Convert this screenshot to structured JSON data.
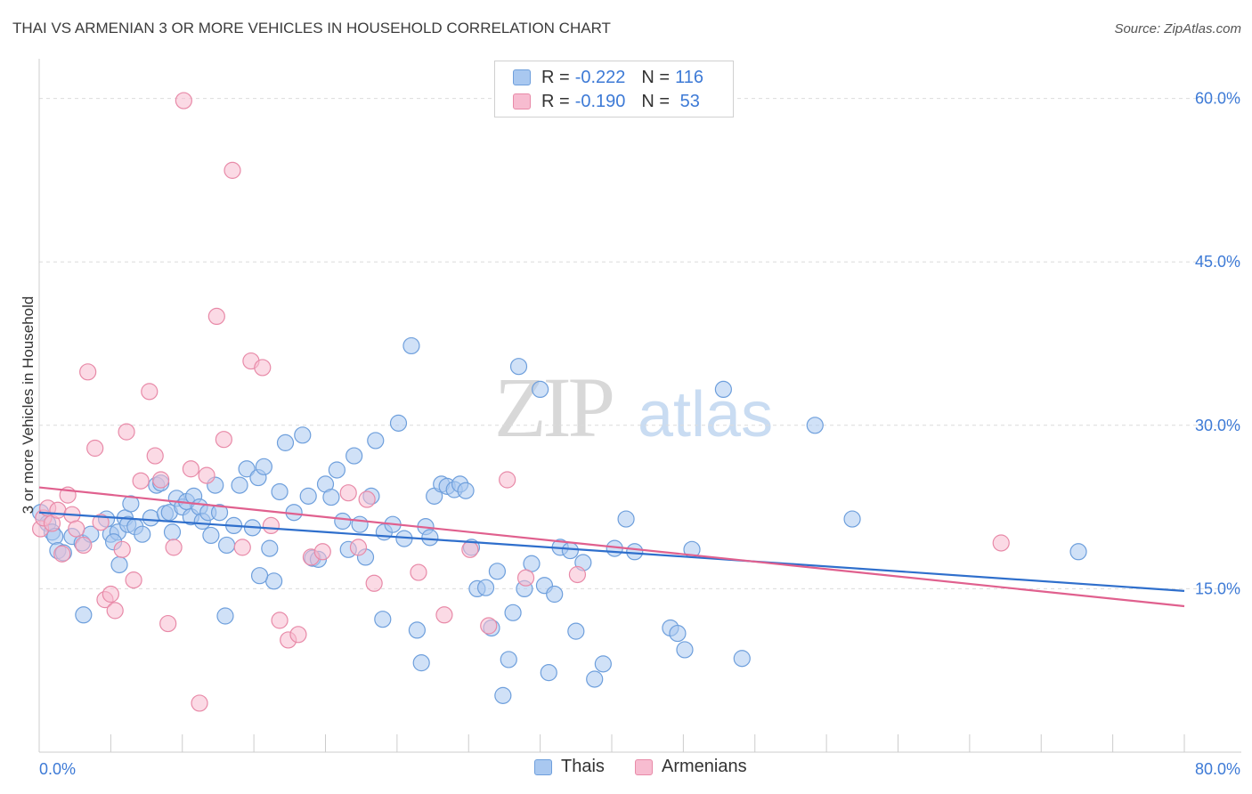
{
  "header": {
    "title": "THAI VS ARMENIAN 3 OR MORE VEHICLES IN HOUSEHOLD CORRELATION CHART",
    "source": "Source: ZipAtlas.com"
  },
  "watermark": {
    "zip": "ZIP",
    "atlas": "atlas"
  },
  "legend": {
    "rows": [
      {
        "r_label": "R = ",
        "r_value": "-0.222",
        "n_label": "N = ",
        "n_value": "116"
      },
      {
        "r_label": "R = ",
        "r_value": "-0.190",
        "n_label": "N = ",
        "n_value": " 53"
      }
    ]
  },
  "bottom_legend": {
    "thais": "Thais",
    "armenians": "Armenians"
  },
  "colors": {
    "thais_fill": "#a9c8f0",
    "thais_stroke": "#6e9fdc",
    "thais_line": "#2f6fcc",
    "armenians_fill": "#f7bcd0",
    "armenians_stroke": "#e88aa8",
    "armenians_line": "#e0608e",
    "axis_text": "#3d7ad6",
    "grid": "#dcdcdc"
  },
  "chart_data": {
    "type": "scatter",
    "title": "THAI VS ARMENIAN 3 OR MORE VEHICLES IN HOUSEHOLD CORRELATION CHART",
    "ylabel": "3 or more Vehicles in Household",
    "xlabel": "",
    "x_tick_labels": [
      "0.0%",
      "80.0%"
    ],
    "y_tick_labels": [
      "15.0%",
      "30.0%",
      "45.0%",
      "60.0%"
    ],
    "y_ticks": [
      15,
      30,
      45,
      60
    ],
    "xlim": [
      0,
      80
    ],
    "ylim": [
      0,
      62.5
    ],
    "grid": true,
    "legend_position": "top-center",
    "series": [
      {
        "name": "Thais",
        "r": -0.222,
        "n": 116,
        "trend": {
          "x": [
            0,
            80
          ],
          "y": [
            22.0,
            14.8
          ]
        },
        "points": [
          [
            0.1,
            22.0
          ],
          [
            0.6,
            21.0
          ],
          [
            0.9,
            20.2
          ],
          [
            1.1,
            19.8
          ],
          [
            1.3,
            18.5
          ],
          [
            1.7,
            18.3
          ],
          [
            2.3,
            19.8
          ],
          [
            3.0,
            19.2
          ],
          [
            3.6,
            20.0
          ],
          [
            4.7,
            21.4
          ],
          [
            5.0,
            20.0
          ],
          [
            5.5,
            20.2
          ],
          [
            5.2,
            19.3
          ],
          [
            5.6,
            17.2
          ],
          [
            6.0,
            21.5
          ],
          [
            6.2,
            20.9
          ],
          [
            6.4,
            22.8
          ],
          [
            6.7,
            20.7
          ],
          [
            7.2,
            20.0
          ],
          [
            7.8,
            21.5
          ],
          [
            8.2,
            24.5
          ],
          [
            8.5,
            24.7
          ],
          [
            8.8,
            21.9
          ],
          [
            9.1,
            22.0
          ],
          [
            9.3,
            20.2
          ],
          [
            9.6,
            23.3
          ],
          [
            10.0,
            22.5
          ],
          [
            10.3,
            23.0
          ],
          [
            10.6,
            21.6
          ],
          [
            10.8,
            23.5
          ],
          [
            11.2,
            22.5
          ],
          [
            11.4,
            21.2
          ],
          [
            11.8,
            22.0
          ],
          [
            12.0,
            19.9
          ],
          [
            12.3,
            24.5
          ],
          [
            12.6,
            22.0
          ],
          [
            13.1,
            19.0
          ],
          [
            13.6,
            20.8
          ],
          [
            14.0,
            24.5
          ],
          [
            14.5,
            26.0
          ],
          [
            14.9,
            20.6
          ],
          [
            15.3,
            25.2
          ],
          [
            15.7,
            26.2
          ],
          [
            16.1,
            18.7
          ],
          [
            16.4,
            15.7
          ],
          [
            16.8,
            23.9
          ],
          [
            17.2,
            28.4
          ],
          [
            17.8,
            22.0
          ],
          [
            18.4,
            29.1
          ],
          [
            18.8,
            23.5
          ],
          [
            19.1,
            17.8
          ],
          [
            19.5,
            17.7
          ],
          [
            20.0,
            24.6
          ],
          [
            20.4,
            23.4
          ],
          [
            20.8,
            25.9
          ],
          [
            21.2,
            21.2
          ],
          [
            21.6,
            18.6
          ],
          [
            22.0,
            27.2
          ],
          [
            22.4,
            20.9
          ],
          [
            22.8,
            17.9
          ],
          [
            23.2,
            23.5
          ],
          [
            23.5,
            28.6
          ],
          [
            24.1,
            20.2
          ],
          [
            24.7,
            20.9
          ],
          [
            25.1,
            30.2
          ],
          [
            25.5,
            19.6
          ],
          [
            26.0,
            37.3
          ],
          [
            26.4,
            11.2
          ],
          [
            26.7,
            8.2
          ],
          [
            27.0,
            20.7
          ],
          [
            27.3,
            19.7
          ],
          [
            27.6,
            23.5
          ],
          [
            28.1,
            24.6
          ],
          [
            28.5,
            24.4
          ],
          [
            29.0,
            24.1
          ],
          [
            29.4,
            24.6
          ],
          [
            29.8,
            24.0
          ],
          [
            30.2,
            18.8
          ],
          [
            30.6,
            15.0
          ],
          [
            31.2,
            15.1
          ],
          [
            31.6,
            11.4
          ],
          [
            32.0,
            16.6
          ],
          [
            32.4,
            5.2
          ],
          [
            32.8,
            8.5
          ],
          [
            33.1,
            12.8
          ],
          [
            33.5,
            35.4
          ],
          [
            33.9,
            15.0
          ],
          [
            34.4,
            17.3
          ],
          [
            35.0,
            33.3
          ],
          [
            35.3,
            15.3
          ],
          [
            35.6,
            7.3
          ],
          [
            36.0,
            14.5
          ],
          [
            36.4,
            18.8
          ],
          [
            37.1,
            18.5
          ],
          [
            37.5,
            11.1
          ],
          [
            38.0,
            17.4
          ],
          [
            38.8,
            6.7
          ],
          [
            39.4,
            8.1
          ],
          [
            40.2,
            18.7
          ],
          [
            41.0,
            21.4
          ],
          [
            41.6,
            18.4
          ],
          [
            44.1,
            11.4
          ],
          [
            44.6,
            10.9
          ],
          [
            45.1,
            9.4
          ],
          [
            45.6,
            18.6
          ],
          [
            47.8,
            33.3
          ],
          [
            49.1,
            8.6
          ],
          [
            54.2,
            30.0
          ],
          [
            56.8,
            21.4
          ],
          [
            72.6,
            18.4
          ],
          [
            13.0,
            12.5
          ],
          [
            3.1,
            12.6
          ],
          [
            15.4,
            16.2
          ],
          [
            24.0,
            12.2
          ]
        ]
      },
      {
        "name": "Armenians",
        "r": -0.19,
        "n": 53,
        "trend": {
          "x": [
            0,
            80
          ],
          "y": [
            24.3,
            13.4
          ]
        },
        "points": [
          [
            0.1,
            20.5
          ],
          [
            0.3,
            21.5
          ],
          [
            0.6,
            22.4
          ],
          [
            0.9,
            21.0
          ],
          [
            1.3,
            22.2
          ],
          [
            1.6,
            18.2
          ],
          [
            2.0,
            23.6
          ],
          [
            2.3,
            21.8
          ],
          [
            2.6,
            20.5
          ],
          [
            3.1,
            19.0
          ],
          [
            3.4,
            34.9
          ],
          [
            3.9,
            27.9
          ],
          [
            4.3,
            21.1
          ],
          [
            4.6,
            14.0
          ],
          [
            5.0,
            14.5
          ],
          [
            5.3,
            13.0
          ],
          [
            5.8,
            18.6
          ],
          [
            6.1,
            29.4
          ],
          [
            6.6,
            15.8
          ],
          [
            7.1,
            24.9
          ],
          [
            7.7,
            33.1
          ],
          [
            8.1,
            27.2
          ],
          [
            8.5,
            25.0
          ],
          [
            9.0,
            11.8
          ],
          [
            9.4,
            18.8
          ],
          [
            10.1,
            59.8
          ],
          [
            10.6,
            26.0
          ],
          [
            11.2,
            4.5
          ],
          [
            11.7,
            25.4
          ],
          [
            12.4,
            40.0
          ],
          [
            12.9,
            28.7
          ],
          [
            13.5,
            53.4
          ],
          [
            14.2,
            18.8
          ],
          [
            14.8,
            35.9
          ],
          [
            15.6,
            35.3
          ],
          [
            16.2,
            20.8
          ],
          [
            16.8,
            12.1
          ],
          [
            17.4,
            10.3
          ],
          [
            18.1,
            10.8
          ],
          [
            19.0,
            17.9
          ],
          [
            19.8,
            18.4
          ],
          [
            21.6,
            23.8
          ],
          [
            22.3,
            18.8
          ],
          [
            22.9,
            23.2
          ],
          [
            23.4,
            15.5
          ],
          [
            26.5,
            16.5
          ],
          [
            28.3,
            12.6
          ],
          [
            30.1,
            18.6
          ],
          [
            31.4,
            11.6
          ],
          [
            32.7,
            25.0
          ],
          [
            34.0,
            16.0
          ],
          [
            37.6,
            16.3
          ],
          [
            67.2,
            19.2
          ]
        ]
      }
    ]
  }
}
